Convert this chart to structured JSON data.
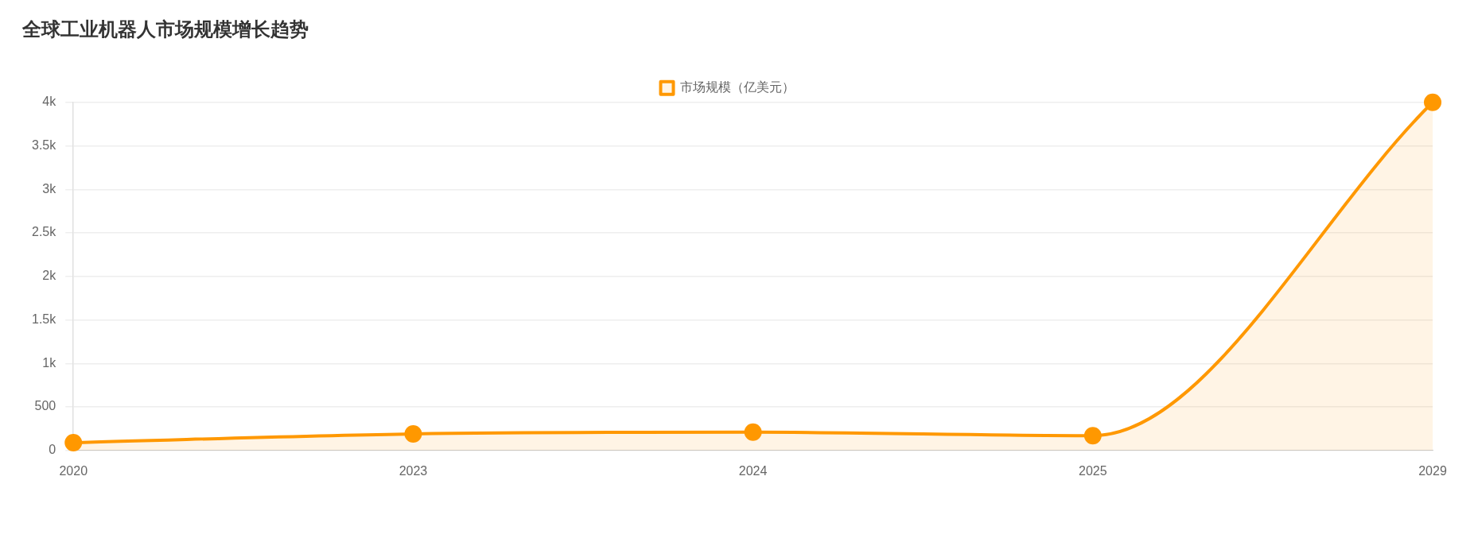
{
  "chart_data": {
    "type": "area",
    "title": "全球工业机器人市场规模增长趋势",
    "categories": [
      "2020",
      "2023",
      "2024",
      "2025",
      "2029"
    ],
    "series": [
      {
        "name": "市场规模（亿美元）",
        "color": "#ff9800",
        "values": [
          90,
          190,
          210,
          170,
          4000
        ]
      }
    ],
    "ylim": [
      0,
      4000
    ],
    "yticks": [
      0,
      500,
      {
        "value": 1000,
        "label": "1k"
      },
      {
        "value": 1500,
        "label": "1.5k"
      },
      {
        "value": 2000,
        "label": "2k"
      },
      {
        "value": 2500,
        "label": "2.5k"
      },
      {
        "value": 3000,
        "label": "3k"
      },
      {
        "value": 3500,
        "label": "3.5k"
      },
      {
        "value": 4000,
        "label": "4k"
      }
    ],
    "grid": "y",
    "legend": "top",
    "marker": "circle"
  }
}
